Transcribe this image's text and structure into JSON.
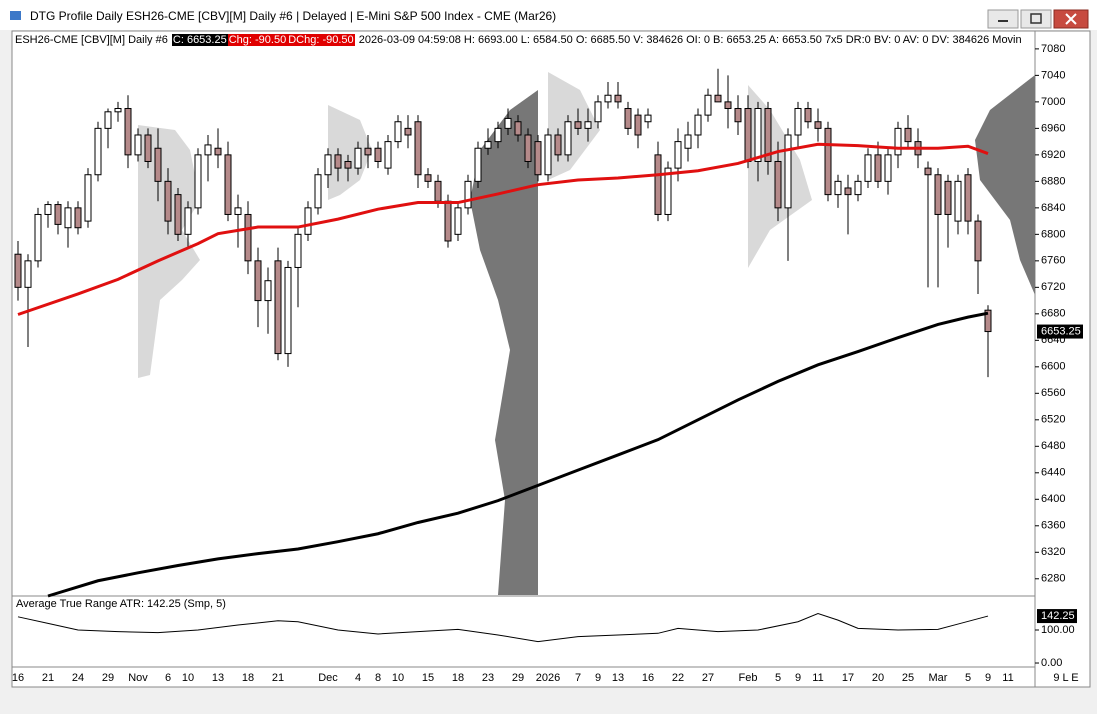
{
  "window_title": "DTG Profile Daily ESH26-CME [CBV][M]  Daily #6 | Delayed | E-Mini S&P 500 Index - CME (Mar26)",
  "info": {
    "symbol": "ESH26-CME [CBV][M]  Daily #6",
    "close": "C: 6653.25",
    "chg": "Chg: -90.50",
    "dchg": "DChg: -90.50",
    "rest": "2026-03-09 04:59:08 H: 6693.00 L: 6584.50 O: 6685.50 V: 384626 OI: 0 B: 6653.25 A: 6653.50 7x5 DR:0 BV: 0 AV: 0 DV: 384626 Movin"
  },
  "status": "9 L E",
  "chart_data": [
    {
      "type": "candlestick",
      "categories": [
        "16",
        null,
        null,
        "21",
        null,
        null,
        "24",
        null,
        null,
        "29",
        null,
        null,
        "Nov",
        null,
        null,
        "6",
        null,
        "10",
        null,
        null,
        "13",
        null,
        null,
        "18",
        null,
        null,
        "21",
        null,
        null,
        null,
        null,
        "Dec",
        null,
        null,
        "4",
        null,
        "8",
        null,
        "10",
        null,
        null,
        "15",
        null,
        null,
        "18",
        null,
        null,
        "23",
        null,
        null,
        "29",
        null,
        null,
        "2026",
        null,
        null,
        "7",
        null,
        "9",
        null,
        "13",
        null,
        null,
        "16",
        null,
        null,
        "22",
        null,
        null,
        "27",
        null,
        null,
        null,
        "Feb",
        null,
        null,
        "5",
        null,
        "9",
        null,
        "11",
        null,
        null,
        "17",
        null,
        null,
        "20",
        null,
        null,
        "25",
        null,
        null,
        "Mar",
        null,
        null,
        "5",
        null,
        "9",
        null,
        "11"
      ],
      "open": [
        6770,
        6720,
        6760,
        6830,
        6845,
        6810,
        6840,
        6820,
        6890,
        6960,
        6985,
        6990,
        6920,
        6950,
        6930,
        6880,
        6860,
        6800,
        6840,
        6920,
        6930,
        6920,
        6830,
        6830,
        6760,
        6700,
        6760,
        6620,
        6750,
        6800,
        6840,
        6890,
        6920,
        6910,
        6900,
        6930,
        6930,
        6900,
        6940,
        6960,
        6970,
        6890,
        6880,
        6850,
        6800,
        6840,
        6880,
        6930,
        6940,
        6960,
        6970,
        6950,
        6940,
        6890,
        6950,
        6920,
        6970,
        6960,
        6970,
        7000,
        7010,
        6990,
        6980,
        6970,
        6920,
        6830,
        6900,
        6930,
        6950,
        6980,
        7010,
        7000,
        6990,
        6990,
        6910,
        6990,
        6910,
        6840,
        6950,
        6990,
        6970,
        6960,
        6860,
        6870,
        6860,
        6880,
        6920,
        6880,
        6920,
        6960,
        6940,
        6900,
        6890,
        6880,
        6820,
        6890,
        6820,
        6685.5,
        null,
        null
      ],
      "high": [
        6790,
        6770,
        6840,
        6850,
        6850,
        6850,
        6850,
        6900,
        6970,
        6990,
        7000,
        7010,
        6960,
        6960,
        6960,
        6900,
        6870,
        6850,
        6930,
        6950,
        6960,
        6940,
        6860,
        6850,
        6780,
        6750,
        6780,
        6760,
        6810,
        6850,
        6900,
        6930,
        6930,
        6920,
        6940,
        6950,
        6940,
        6950,
        6980,
        6980,
        6980,
        6900,
        6890,
        6860,
        6850,
        6890,
        6940,
        6960,
        6970,
        6990,
        6980,
        6960,
        6950,
        6960,
        6960,
        6980,
        6990,
        6990,
        7010,
        7030,
        7030,
        7000,
        6990,
        6990,
        6940,
        6910,
        6960,
        6970,
        6990,
        7020,
        7050,
        7040,
        7010,
        7010,
        7000,
        7000,
        6940,
        6960,
        7000,
        7000,
        6990,
        6970,
        6890,
        6890,
        6890,
        6930,
        6940,
        6930,
        6970,
        6980,
        6960,
        6910,
        6900,
        6890,
        6890,
        6900,
        6830,
        6693,
        null,
        null
      ],
      "low": [
        6700,
        6630,
        6750,
        6810,
        6800,
        6780,
        6800,
        6810,
        6880,
        6930,
        6970,
        6900,
        6910,
        6900,
        6850,
        6800,
        6790,
        6780,
        6830,
        6880,
        6900,
        6820,
        6780,
        6740,
        6660,
        6650,
        6610,
        6600,
        6690,
        6790,
        6830,
        6870,
        6880,
        6880,
        6890,
        6900,
        6900,
        6890,
        6930,
        6930,
        6870,
        6870,
        6840,
        6780,
        6790,
        6830,
        6870,
        6920,
        6930,
        6950,
        6940,
        6900,
        6880,
        6880,
        6910,
        6910,
        6950,
        6940,
        6960,
        6990,
        6990,
        6950,
        6930,
        6960,
        6820,
        6820,
        6880,
        6910,
        6930,
        6970,
        7000,
        6960,
        6950,
        6900,
        6880,
        6890,
        6820,
        6760,
        6930,
        6960,
        6940,
        6850,
        6840,
        6800,
        6850,
        6870,
        6870,
        6860,
        6900,
        6930,
        6900,
        6720,
        6720,
        6780,
        6800,
        6800,
        6710,
        6584.5,
        null,
        null
      ],
      "close": [
        6720,
        6760,
        6830,
        6845,
        6815,
        6840,
        6810,
        6890,
        6960,
        6985,
        6990,
        6920,
        6950,
        6910,
        6880,
        6820,
        6800,
        6840,
        6920,
        6935,
        6920,
        6830,
        6840,
        6760,
        6700,
        6730,
        6620,
        6750,
        6800,
        6840,
        6890,
        6920,
        6900,
        6900,
        6930,
        6920,
        6910,
        6940,
        6970,
        6950,
        6890,
        6880,
        6850,
        6790,
        6840,
        6880,
        6930,
        6940,
        6960,
        6975,
        6950,
        6910,
        6890,
        6950,
        6920,
        6970,
        6960,
        6970,
        7000,
        7010,
        7000,
        6960,
        6950,
        6980,
        6830,
        6900,
        6940,
        6950,
        6980,
        7010,
        7000,
        6990,
        6970,
        6910,
        6990,
        6910,
        6840,
        6950,
        6990,
        6970,
        6960,
        6860,
        6880,
        6860,
        6880,
        6920,
        6880,
        6920,
        6960,
        6940,
        6920,
        6890,
        6830,
        6830,
        6880,
        6820,
        6760,
        6653.25,
        null,
        null
      ],
      "up_color": "#ffffff",
      "down_color": "#b58a8a",
      "series": [
        {
          "color": "#e01010",
          "x": [
            0,
            6,
            10,
            14,
            18,
            20,
            24,
            28,
            32,
            36,
            40,
            44,
            48,
            52,
            56,
            60,
            64,
            68,
            72,
            76,
            80,
            84,
            88,
            92,
            95,
            97
          ],
          "values": [
            6679,
            6710,
            6732,
            6760,
            6786,
            6801,
            6811,
            6811,
            6823,
            6838,
            6848,
            6848,
            6861,
            6875,
            6882,
            6885,
            6890,
            6896,
            6907,
            6925,
            6936,
            6934,
            6930,
            6930,
            6933,
            6922
          ]
        },
        {
          "color": "#000000",
          "x": [
            3,
            8,
            12,
            16,
            20,
            24,
            28,
            32,
            36,
            40,
            44,
            48,
            52,
            56,
            60,
            64,
            68,
            72,
            76,
            80,
            84,
            88,
            92,
            95,
            97
          ],
          "values": [
            6254,
            6277,
            6289,
            6300,
            6310,
            6318,
            6325,
            6336,
            6348,
            6365,
            6379,
            6398,
            6421,
            6444,
            6467,
            6490,
            6520,
            6550,
            6578,
            6603,
            6623,
            6644,
            6664,
            6675,
            6681
          ]
        }
      ],
      "ylim": [
        6254,
        7107
      ],
      "yticks": [
        6280,
        6320,
        6360,
        6400,
        6440,
        6480,
        6520,
        6560,
        6600,
        6640,
        6680,
        6720,
        6760,
        6800,
        6840,
        6880,
        6920,
        6960,
        7000,
        7040,
        7080
      ]
    },
    {
      "type": "line",
      "title": "Average True Range  ATR: 142.25  (Smp, 5)",
      "x": [
        0,
        3,
        6,
        10,
        14,
        18,
        22,
        26,
        28,
        32,
        36,
        40,
        44,
        48,
        52,
        56,
        60,
        64,
        66,
        70,
        74,
        78,
        80,
        82,
        84,
        88,
        92,
        94,
        97
      ],
      "values": [
        140,
        120,
        100,
        95,
        92,
        100,
        115,
        128,
        125,
        100,
        88,
        95,
        102,
        85,
        65,
        80,
        85,
        90,
        105,
        95,
        100,
        125,
        150,
        130,
        105,
        100,
        102,
        118,
        142.25
      ],
      "color": "#000000",
      "ylim": [
        -6,
        200
      ],
      "yticks": [
        {
          "value": 0,
          "label": "0.00"
        },
        {
          "value": 100,
          "label": "100.00"
        }
      ]
    }
  ]
}
